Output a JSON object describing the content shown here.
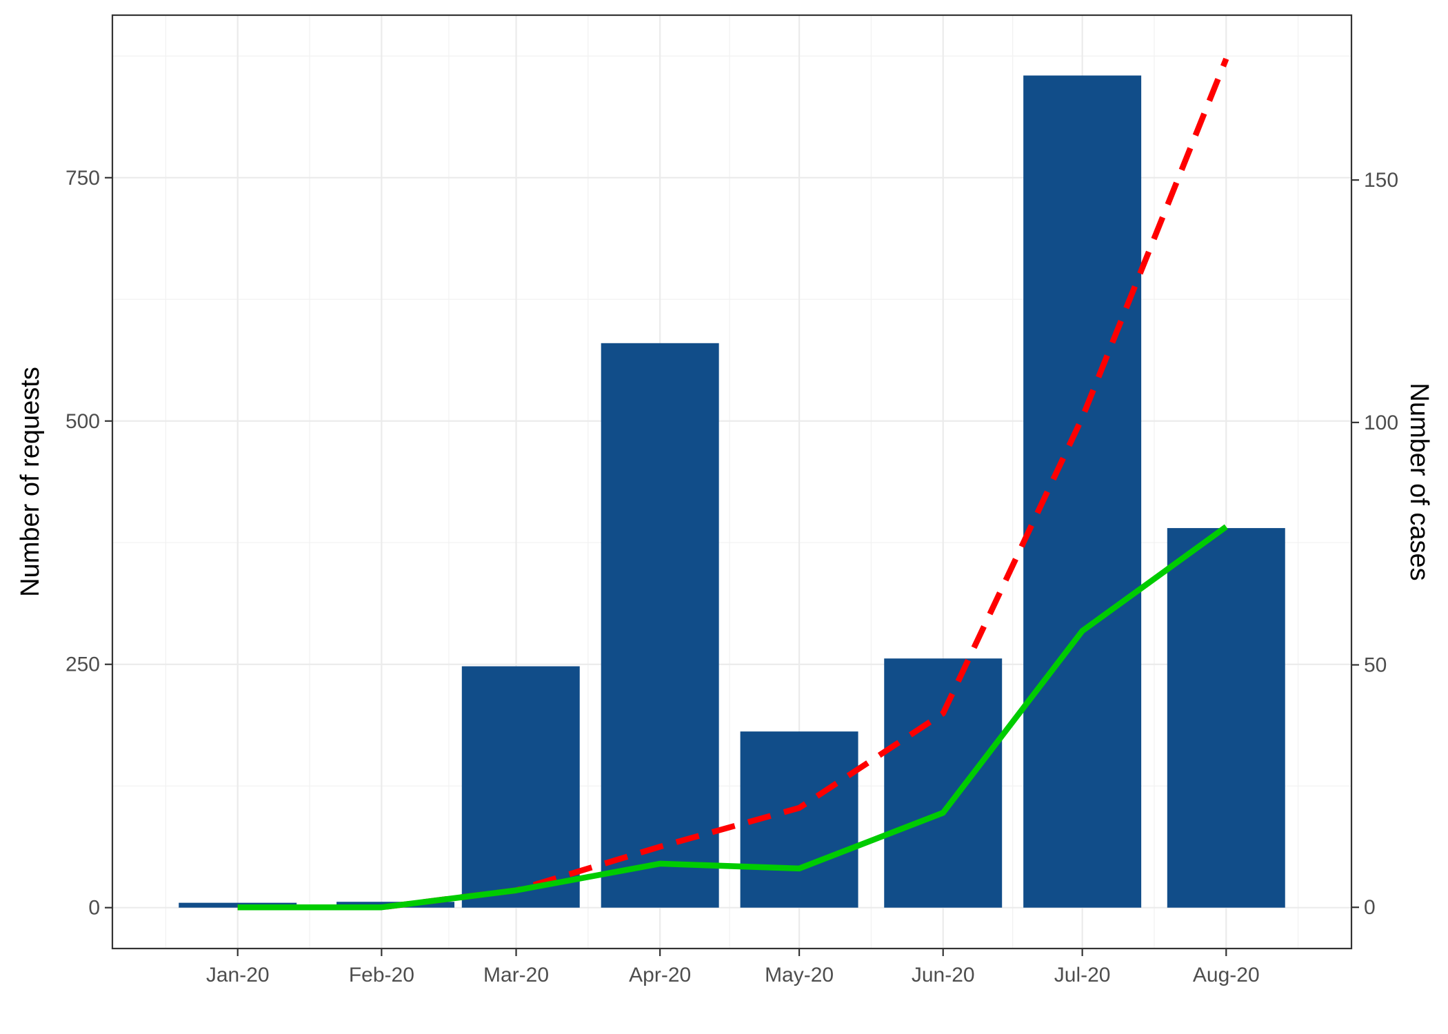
{
  "chart_data": {
    "type": "bar",
    "categories": [
      "Jan-20",
      "Feb-20",
      "Mar-20",
      "Apr-20",
      "May-20",
      "Jun-20",
      "Jul-20",
      "Aug-20"
    ],
    "x": [
      "2020-01-01",
      "2020-02-01",
      "2020-03-01",
      "2020-04-01",
      "2020-05-01",
      "2020-06-01",
      "2020-07-01",
      "2020-08-01"
    ],
    "bar_x": [
      "2020-01-01",
      "2020-02-04",
      "2020-03-02",
      "2020-04-01",
      "2020-05-01",
      "2020-06-01",
      "2020-07-01",
      "2020-08-01"
    ],
    "xlim": [
      "2019-12-05",
      "2020-08-28"
    ],
    "series": [
      {
        "type": "bar",
        "axis": "left",
        "values": [
          5,
          6,
          248,
          580,
          181,
          256,
          855,
          390
        ],
        "color": "#114d89"
      },
      {
        "type": "line",
        "axis": "right",
        "style": "dashed",
        "values": [
          0,
          0,
          3.5,
          12.5,
          20.5,
          40,
          101,
          175
        ],
        "color": "#ff0000"
      },
      {
        "type": "line",
        "axis": "right",
        "style": "solid",
        "values": [
          0,
          0,
          3.5,
          9,
          8,
          19.5,
          57,
          78.5
        ],
        "color": "#00cc00"
      }
    ],
    "ylabel": "Number of requests",
    "ylabel_right": "Number of cases",
    "ylim": [
      -42,
      917
    ],
    "yticks": [
      0,
      250,
      500,
      750
    ],
    "ylim_right": [
      -8.5,
      184
    ],
    "yticks_right": [
      0,
      50,
      100,
      150
    ],
    "grid": true
  }
}
